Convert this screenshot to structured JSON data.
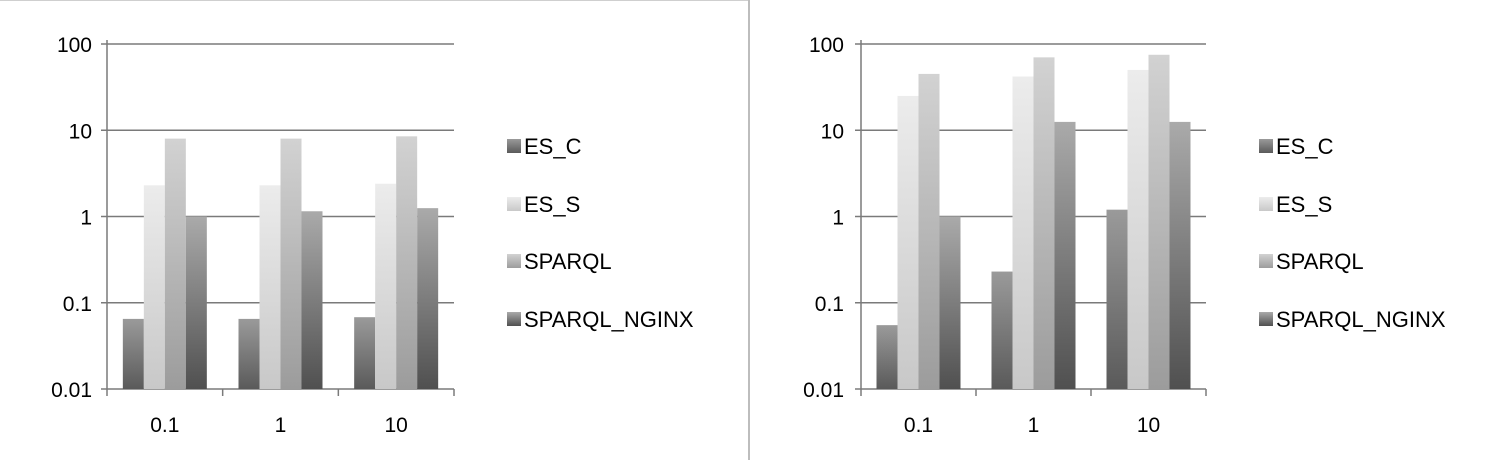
{
  "chart_data": [
    {
      "type": "bar",
      "title": "",
      "xlabel": "",
      "ylabel": "",
      "yscale": "log",
      "ylim": [
        0.01,
        100
      ],
      "y_ticks": [
        "0.01",
        "0.1",
        "1",
        "10",
        "100"
      ],
      "categories": [
        "0.1",
        "1",
        "10"
      ],
      "grid": true,
      "legend_position": "right",
      "series": [
        {
          "name": "ES_C",
          "values": [
            0.065,
            0.065,
            0.068
          ]
        },
        {
          "name": "ES_S",
          "values": [
            2.3,
            2.3,
            2.4
          ]
        },
        {
          "name": "SPARQL",
          "values": [
            8,
            8,
            8.5
          ]
        },
        {
          "name": "SPARQL_NGINX",
          "values": [
            1.0,
            1.15,
            1.25
          ]
        }
      ]
    },
    {
      "type": "bar",
      "title": "",
      "xlabel": "",
      "ylabel": "",
      "yscale": "log",
      "ylim": [
        0.01,
        100
      ],
      "y_ticks": [
        "0.01",
        "0.1",
        "1",
        "10",
        "100"
      ],
      "categories": [
        "0.1",
        "1",
        "10"
      ],
      "grid": true,
      "legend_position": "right",
      "series": [
        {
          "name": "ES_C",
          "values": [
            0.055,
            0.23,
            1.2
          ]
        },
        {
          "name": "ES_S",
          "values": [
            25,
            42,
            50
          ]
        },
        {
          "name": "SPARQL",
          "values": [
            45,
            70,
            75
          ]
        },
        {
          "name": "SPARQL_NGINX",
          "values": [
            1.0,
            12.5,
            12.5
          ]
        }
      ]
    }
  ],
  "colors": {
    "series_gradients": [
      [
        "#9a9a9a",
        "#5a5a5a"
      ],
      [
        "#ececec",
        "#c8c8c8"
      ],
      [
        "#d2d2d2",
        "#9c9c9c"
      ],
      [
        "#aaaaaa",
        "#505050"
      ]
    ],
    "grid": "#7a7a7a"
  }
}
